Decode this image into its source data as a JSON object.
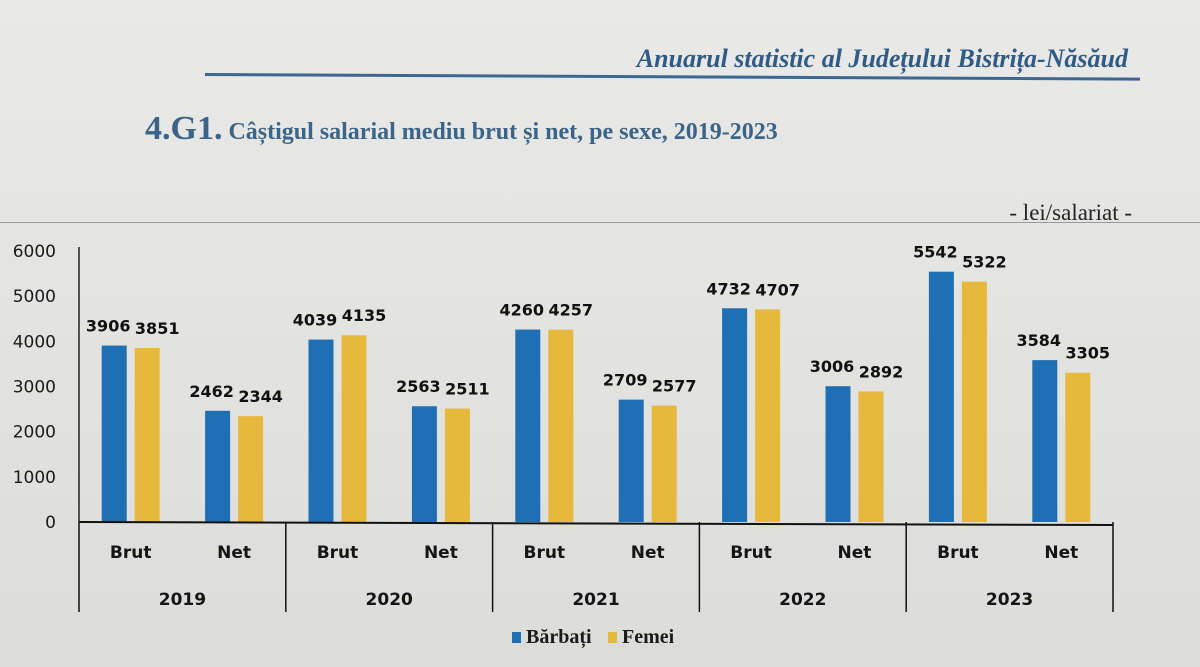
{
  "header": {
    "running_head": "Anuarul statistic al Județului Bistrița-Năsăud",
    "figure_number": "4.G1.",
    "figure_title": "Câștigul salarial mediu brut și net, pe sexe, 2019-2023",
    "unit": "- lei/salariat -"
  },
  "colors": {
    "barbati": "#1f6fb4",
    "femei": "#e6b93d"
  },
  "chart_data": {
    "type": "bar",
    "title": "Câștigul salarial mediu brut și net, pe sexe, 2019-2023",
    "ylabel": "lei/salariat",
    "xlabel": "",
    "ylim": [
      0,
      6000
    ],
    "yticks": [
      "0",
      "1000",
      "2000",
      "3000",
      "4000",
      "5000",
      "6000"
    ],
    "grid": false,
    "legend_position": "bottom",
    "groups": [
      "2019",
      "2020",
      "2021",
      "2022",
      "2023"
    ],
    "subcategories": [
      "Brut",
      "Net"
    ],
    "categories": [
      "2019 Brut",
      "2019 Net",
      "2020 Brut",
      "2020 Net",
      "2021 Brut",
      "2021 Net",
      "2022 Brut",
      "2022 Net",
      "2023 Brut",
      "2023 Net"
    ],
    "series": [
      {
        "name": "Bărbați",
        "values": [
          3906,
          2462,
          4039,
          2563,
          4260,
          2709,
          4732,
          3006,
          5542,
          3584
        ]
      },
      {
        "name": "Femei",
        "values": [
          3851,
          2344,
          4135,
          2511,
          4257,
          2577,
          4707,
          2892,
          5322,
          3305
        ]
      }
    ]
  }
}
